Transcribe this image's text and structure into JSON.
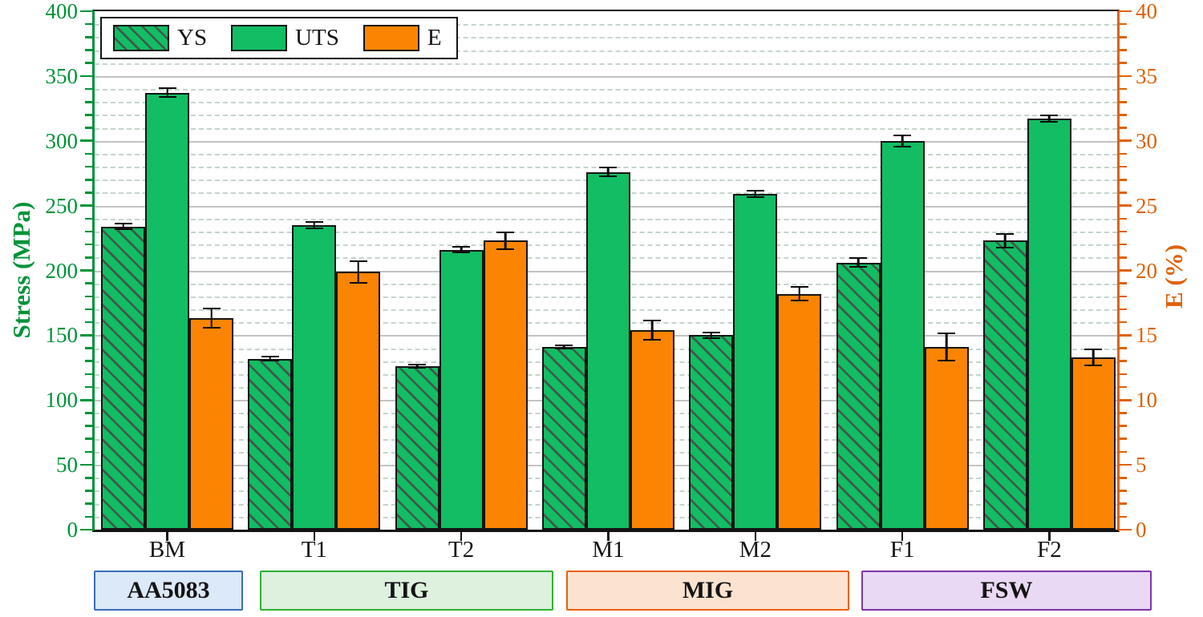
{
  "chart_data": {
    "type": "bar",
    "title": "",
    "categories": [
      "BM",
      "T1",
      "T2",
      "M1",
      "M2",
      "F1",
      "F2"
    ],
    "series": [
      {
        "name": "YS",
        "axis": "left",
        "style": "hatched-green",
        "values": [
          234,
          132,
          126,
          141,
          150,
          206,
          223
        ],
        "errors": [
          3,
          2,
          2,
          2,
          3,
          4,
          6
        ]
      },
      {
        "name": "UTS",
        "axis": "left",
        "style": "solid-green",
        "values": [
          337,
          235,
          216,
          276,
          259,
          300,
          317
        ],
        "errors": [
          4,
          3,
          3,
          4,
          3,
          5,
          3
        ]
      },
      {
        "name": "E",
        "axis": "right",
        "style": "solid-orange",
        "values": [
          16.3,
          19.9,
          22.3,
          15.4,
          18.2,
          14.1,
          13.3
        ],
        "errors": [
          0.8,
          0.9,
          0.7,
          0.8,
          0.6,
          1.1,
          0.7
        ]
      }
    ],
    "left_axis": {
      "label": "Stress (MPa)",
      "min": 0,
      "max": 400,
      "major_step": 50,
      "minor_step": 10,
      "tick_labels": [
        "0",
        "50",
        "100",
        "150",
        "200",
        "250",
        "300",
        "350",
        "400"
      ],
      "color": "#009239"
    },
    "right_axis": {
      "label": "E (%)",
      "min": 0,
      "max": 40,
      "major_step": 5,
      "minor_step": 1,
      "tick_labels": [
        "0",
        "5",
        "10",
        "15",
        "20",
        "25",
        "30",
        "35",
        "40"
      ],
      "color": "#dd6207"
    },
    "legend": {
      "position": "top-left",
      "orientation": "horizontal",
      "entries": [
        "YS",
        "UTS",
        "E"
      ]
    },
    "grid": {
      "major": "solid",
      "minor": "dashed"
    },
    "group_boxes": [
      {
        "label": "AA5083",
        "fill": "#dbe9f8",
        "border": "#3a6db8"
      },
      {
        "label": "TIG",
        "fill": "#def0de",
        "border": "#2eb135"
      },
      {
        "label": "MIG",
        "fill": "#fce3d0",
        "border": "#e8620b"
      },
      {
        "label": "FSW",
        "fill": "#e9d9f5",
        "border": "#7d35a8"
      }
    ],
    "colors": {
      "bar_green": "#12bd63",
      "bar_orange": "#fb8503",
      "hatch_line": "#40584b",
      "bar_outline": "#141414"
    }
  }
}
